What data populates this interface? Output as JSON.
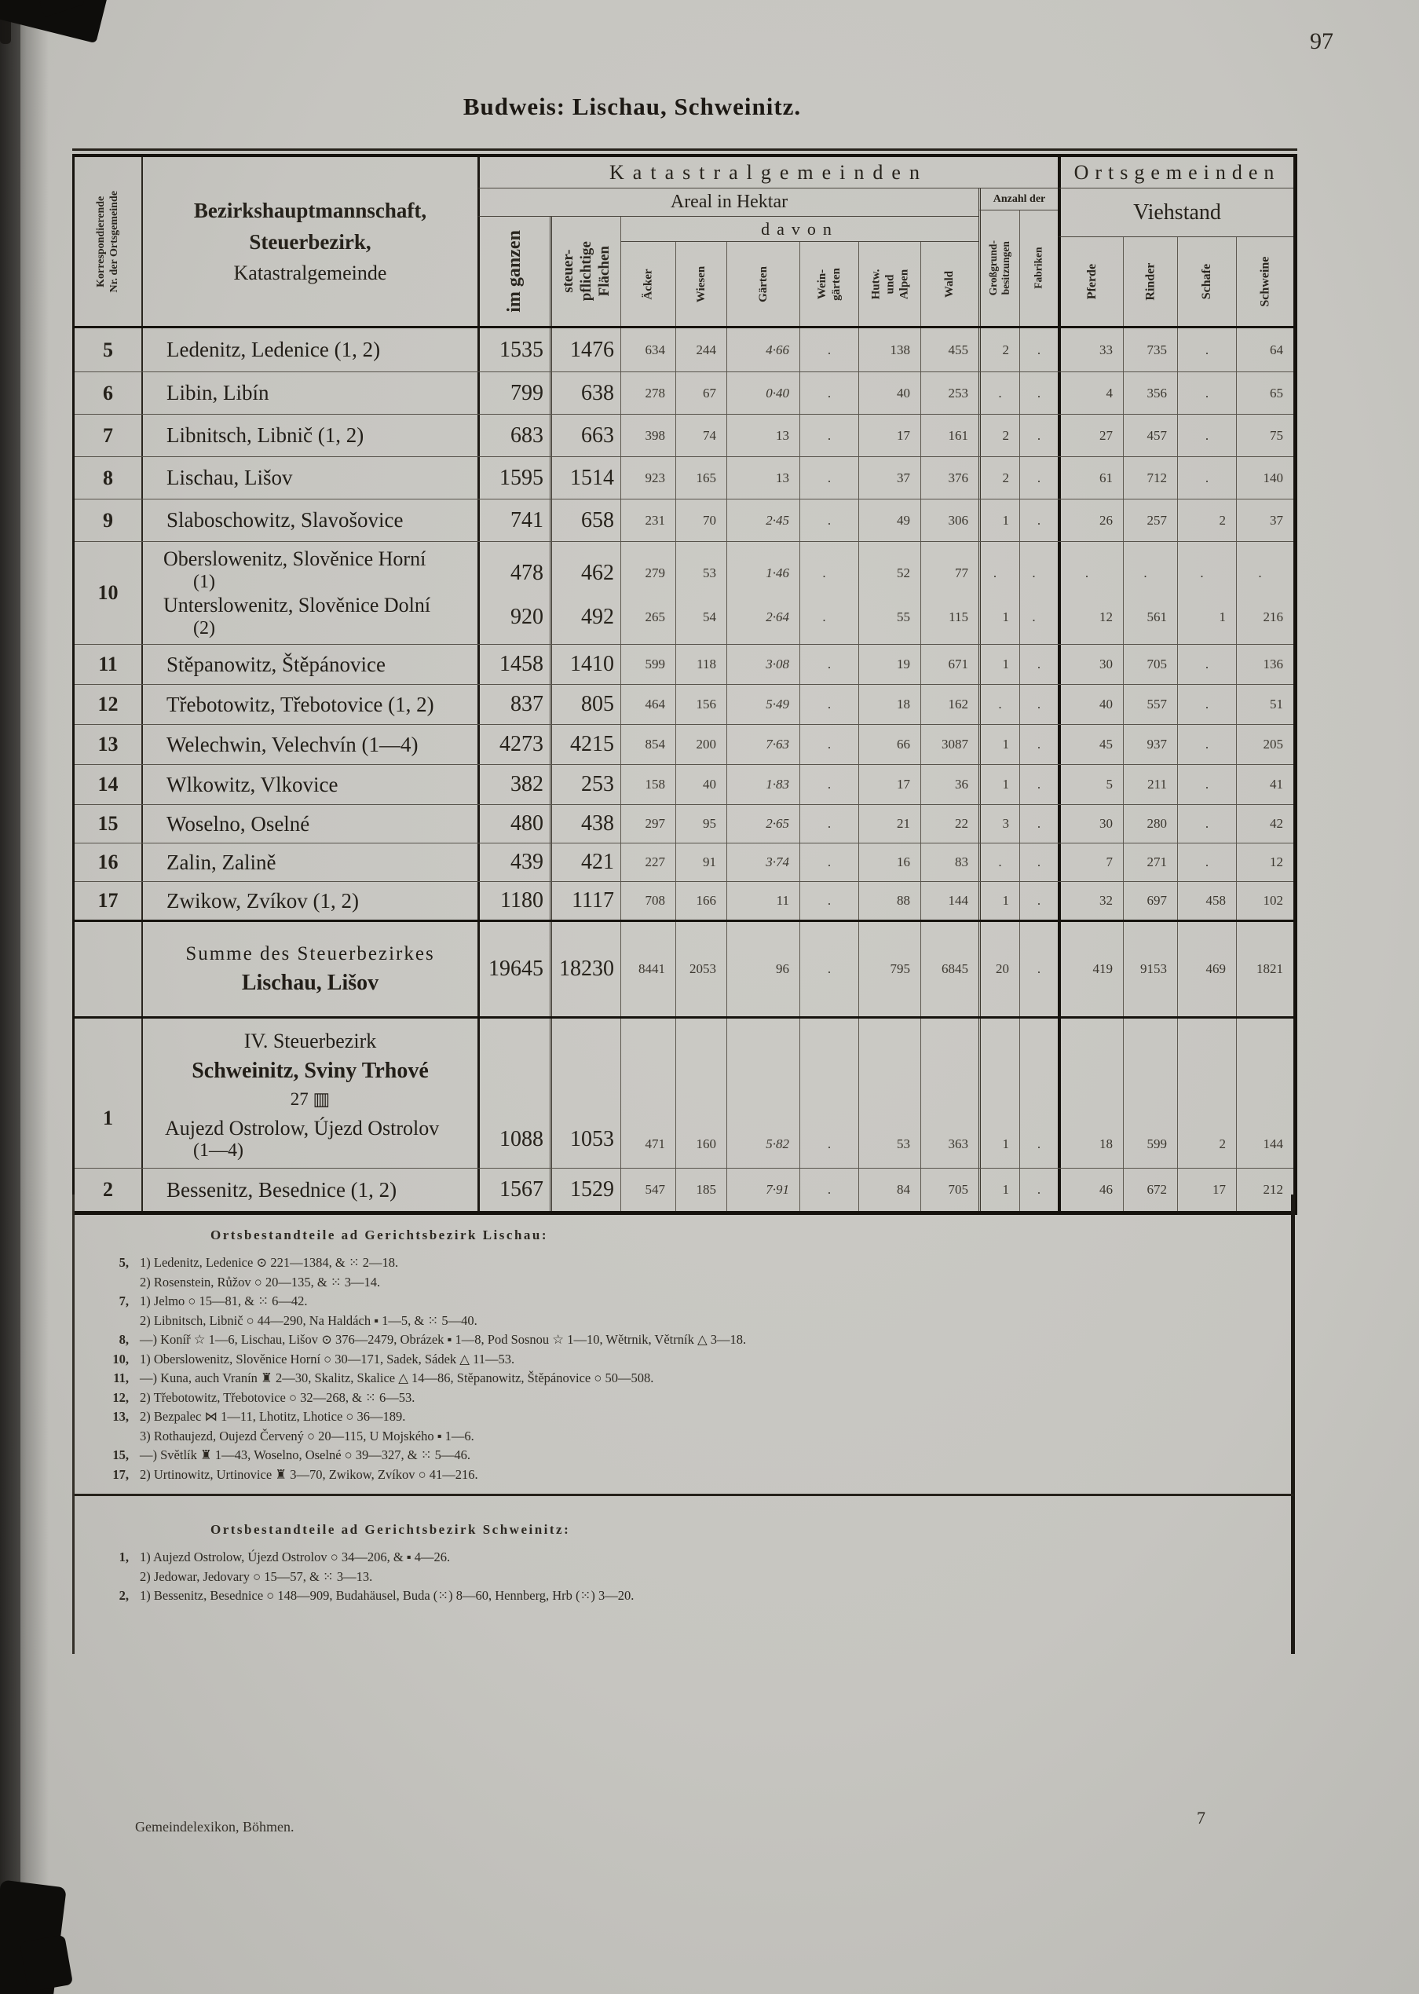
{
  "page": {
    "number": "97",
    "title": "Budweis: Lischau, Schweinitz.",
    "footer_left": "Gemeindelexikon, Böhmen.",
    "footer_page": "7"
  },
  "header": {
    "korr_lines": [
      "Korrespondierende",
      "Nr. der Ortsgemeinde"
    ],
    "name_lines": [
      "Bezirkshauptmannschaft,",
      "Steuerbezirk,",
      "Katastralgemeinde"
    ],
    "katastral": "Katastralgemeinden",
    "orts": "Ortsgemeinden",
    "areal": "Areal in Hektar",
    "davon": "davon",
    "anzahl": "Anzahl der",
    "viehstand": "Viehstand",
    "im_ganzen": "im ganzen",
    "steuerpfl_lines": [
      "steuer-",
      "pflichtige",
      "Flächen"
    ],
    "cols": {
      "acker": "Äcker",
      "wiesen": "Wiesen",
      "garten": "Gärten",
      "weingarten_lines": [
        "Wein-",
        "gärten"
      ],
      "hutweiden_lines": [
        "Hutw.",
        "und",
        "Alpen"
      ],
      "wald": "Wald",
      "grossgrund_lines": [
        "Großgrund-",
        "besitzungen"
      ],
      "fabriken": "Fabriken",
      "pferde": "Pferde",
      "rinder": "Rinder",
      "schafe": "Schafe",
      "schweine": "Schweine"
    }
  },
  "rows": [
    {
      "type": "plain",
      "nr": "5",
      "name": "Ledenitz, Ledenice (1, 2)",
      "values": [
        "1535",
        "1476",
        "634",
        "244",
        "4·66",
        ".",
        "138",
        "455",
        "2",
        ".",
        "33",
        "735",
        ".",
        "64"
      ]
    },
    {
      "type": "plain",
      "nr": "6",
      "name": "Libin, Libín",
      "values": [
        "799",
        "638",
        "278",
        "67",
        "0·40",
        ".",
        "40",
        "253",
        ".",
        ".",
        "4",
        "356",
        ".",
        "65"
      ]
    },
    {
      "type": "plain",
      "nr": "7",
      "name": "Libnitsch, Libnič (1, 2)",
      "values": [
        "683",
        "663",
        "398",
        "74",
        "13",
        ".",
        "17",
        "161",
        "2",
        ".",
        "27",
        "457",
        ".",
        "75"
      ]
    },
    {
      "type": "plain",
      "nr": "8",
      "name": "Lischau, Lišov",
      "values": [
        "1595",
        "1514",
        "923",
        "165",
        "13",
        ".",
        "37",
        "376",
        "2",
        ".",
        "61",
        "712",
        ".",
        "140"
      ]
    },
    {
      "type": "plain",
      "nr": "9",
      "name": "Slaboschowitz, Slavošovice",
      "values": [
        "741",
        "658",
        "231",
        "70",
        "2·45",
        ".",
        "49",
        "306",
        "1",
        ".",
        "26",
        "257",
        "2",
        "37"
      ]
    },
    {
      "type": "double",
      "nr": "10",
      "name_a": "Oberslowenitz, Slověnice Horní",
      "sub_a": "(1)",
      "name_b": "Unterslowenitz, Slověnice Dolní",
      "sub_b": "(2)",
      "values_a": [
        "478",
        "462",
        "279",
        "53",
        "1·46",
        ".",
        "52",
        "77",
        ".",
        ".",
        ".",
        ".",
        ".",
        "."
      ],
      "values_b": [
        "920",
        "492",
        "265",
        "54",
        "2·64",
        ".",
        "55",
        "115",
        "1",
        ".",
        "12",
        "561",
        "1",
        "216"
      ]
    },
    {
      "type": "plain",
      "nr": "11",
      "name": "Stěpanowitz, Štěpánovice",
      "values": [
        "1458",
        "1410",
        "599",
        "118",
        "3·08",
        ".",
        "19",
        "671",
        "1",
        ".",
        "30",
        "705",
        ".",
        "136"
      ]
    },
    {
      "type": "plain",
      "nr": "12",
      "name": "Třebotowitz, Třebotovice (1, 2)",
      "values": [
        "837",
        "805",
        "464",
        "156",
        "5·49",
        ".",
        "18",
        "162",
        ".",
        ".",
        "40",
        "557",
        ".",
        "51"
      ]
    },
    {
      "type": "plain",
      "nr": "13",
      "name": "Welechwin, Velechvín (1—4)",
      "values": [
        "4273",
        "4215",
        "854",
        "200",
        "7·63",
        ".",
        "66",
        "3087",
        "1",
        ".",
        "45",
        "937",
        ".",
        "205"
      ]
    },
    {
      "type": "plain",
      "nr": "14",
      "name": "Wlkowitz, Vlkovice",
      "values": [
        "382",
        "253",
        "158",
        "40",
        "1·83",
        ".",
        "17",
        "36",
        "1",
        ".",
        "5",
        "211",
        ".",
        "41"
      ]
    },
    {
      "type": "plain",
      "nr": "15",
      "name": "Woselno, Oselné",
      "values": [
        "480",
        "438",
        "297",
        "95",
        "2·65",
        ".",
        "21",
        "22",
        "3",
        ".",
        "30",
        "280",
        ".",
        "42"
      ]
    },
    {
      "type": "plain",
      "nr": "16",
      "name": "Zalin, Zalině",
      "values": [
        "439",
        "421",
        "227",
        "91",
        "3·74",
        ".",
        "16",
        "83",
        ".",
        ".",
        "7",
        "271",
        ".",
        "12"
      ]
    },
    {
      "type": "plain",
      "nr": "17",
      "name": "Zwikow, Zvíkov (1, 2)",
      "values": [
        "1180",
        "1117",
        "708",
        "166",
        "11",
        ".",
        "88",
        "144",
        "1",
        ".",
        "32",
        "697",
        "458",
        "102"
      ]
    },
    {
      "type": "summe",
      "label1": "Summe des Steuerbezirkes",
      "label2": "Lischau, Lišov",
      "values": [
        "19645",
        "18230",
        "8441",
        "2053",
        "96",
        ".",
        "795",
        "6845",
        "20",
        ".",
        "419",
        "9153",
        "469",
        "1821"
      ]
    },
    {
      "type": "section",
      "nr": "1",
      "heading1": "IV. Steuerbezirk",
      "heading2": "Schweinitz, Sviny Trhové",
      "heading3": "27 ▥",
      "name": "Aujezd Ostrolow, Újezd Ostrolov",
      "sub": "(1—4)",
      "values": [
        "1088",
        "1053",
        "471",
        "160",
        "5·82",
        ".",
        "53",
        "363",
        "1",
        ".",
        "18",
        "599",
        "2",
        "144"
      ]
    },
    {
      "type": "plain",
      "nr": "2",
      "name": "Bessenitz, Besednice (1, 2)",
      "values": [
        "1567",
        "1529",
        "547",
        "185",
        "7·91",
        ".",
        "84",
        "705",
        "1",
        ".",
        "46",
        "672",
        "17",
        "212"
      ]
    }
  ],
  "footnotes_lischau": {
    "heading": "Ortsbestandteile ad Gerichtsbezirk Lischau:",
    "lines": [
      {
        "ref": "5,",
        "text": "1) Ledenitz, Ledenice ⊙ 221—1384, & ⁙ 2—18."
      },
      {
        "ref": "",
        "text": "2) Rosenstein, Růžov ○ 20—135, & ⁙ 3—14."
      },
      {
        "ref": "7,",
        "text": "1) Jelmo ○ 15—81, & ⁙ 6—42."
      },
      {
        "ref": "",
        "text": "2) Libnitsch, Libnič ○ 44—290, Na Haldách ▪ 1—5, & ⁙ 5—40."
      },
      {
        "ref": "8,",
        "text": "—) Koníř ☆ 1—6, Lischau, Lišov ⊙ 376—2479, Obrázek ▪ 1—8, Pod Sosnou ☆ 1—10, Wětrnik, Větrník △ 3—18."
      },
      {
        "ref": "10,",
        "text": "1) Oberslowenitz, Slověnice Horní ○ 30—171, Sadek, Sádek △ 11—53."
      },
      {
        "ref": "11,",
        "text": "—) Kuna, auch Vranín ♜ 2—30, Skalitz, Skalice △ 14—86, Stěpanowitz, Štěpánovice ○ 50—508."
      },
      {
        "ref": "12,",
        "text": "2) Třebotowitz, Třebotovice ○ 32—268, & ⁙ 6—53."
      },
      {
        "ref": "13,",
        "text": "2) Bezpalec ⋈ 1—11, Lhotitz, Lhotice ○ 36—189."
      },
      {
        "ref": "",
        "text": "3) Rothaujezd, Oujezd Červený ○ 20—115, U Mojského ▪ 1—6."
      },
      {
        "ref": "15,",
        "text": "—) Světlík ♜ 1—43, Woselno, Oselné ○ 39—327, & ⁙ 5—46."
      },
      {
        "ref": "17,",
        "text": "2) Urtinowitz, Urtinovice ♜ 3—70, Zwikow, Zvíkov ○ 41—216."
      }
    ]
  },
  "footnotes_schweinitz": {
    "heading": "Ortsbestandteile ad Gerichtsbezirk Schweinitz:",
    "lines": [
      {
        "ref": "1,",
        "text": "1) Aujezd Ostrolow, Újezd Ostrolov ○ 34—206, & ▪ 4—26."
      },
      {
        "ref": "",
        "text": "2) Jedowar, Jedovary ○ 15—57, & ⁙ 3—13."
      },
      {
        "ref": "2,",
        "text": "1) Bessenitz, Besednice ○ 148—909, Budahäusel, Buda (⁙) 8—60, Hennberg, Hrb (⁙) 3—20."
      }
    ]
  }
}
